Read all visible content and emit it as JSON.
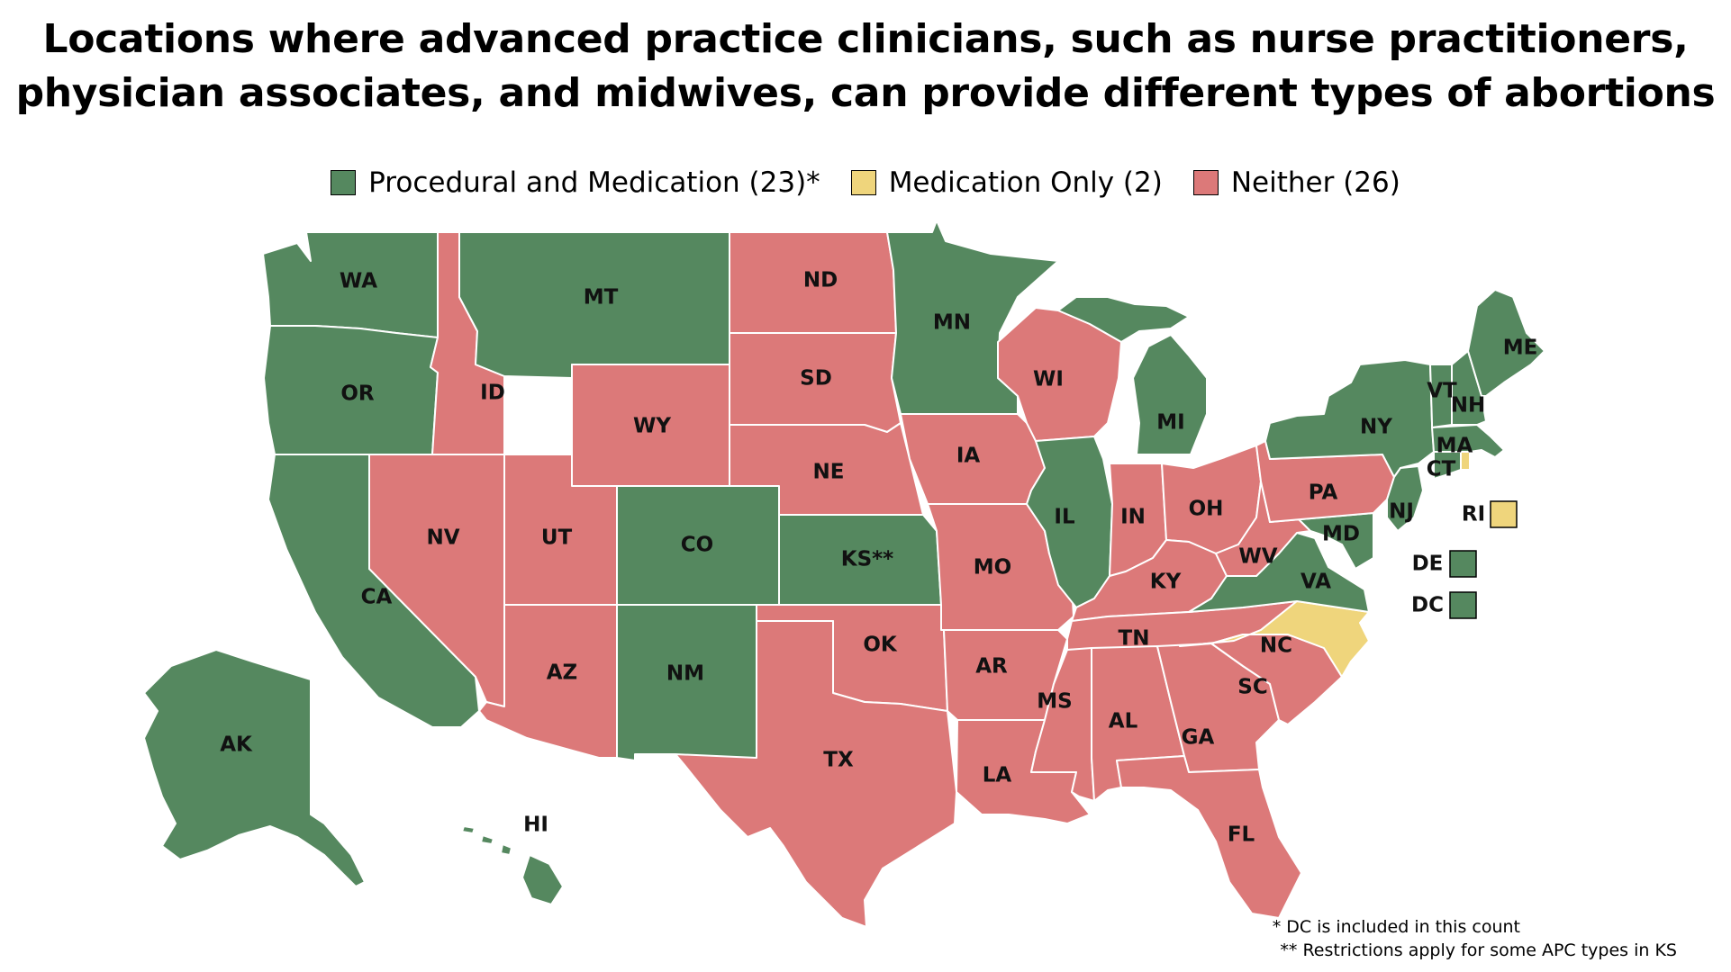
{
  "title_line1": "Locations where advanced practice clinicians, such as nurse practitioners,",
  "title_line2": "physician associates, and midwives, can provide different types of abortions",
  "legend": [
    {
      "key": "both",
      "label": "Procedural and Medication (23)*",
      "color": "#55885f"
    },
    {
      "key": "med",
      "label": "Medication Only (2)",
      "color": "#efd57c"
    },
    {
      "key": "neither",
      "label": "Neither (26)",
      "color": "#dc7979"
    }
  ],
  "states": [
    {
      "abbr": "WA",
      "status": "both"
    },
    {
      "abbr": "OR",
      "status": "both"
    },
    {
      "abbr": "CA",
      "status": "both"
    },
    {
      "abbr": "ID",
      "status": "neither"
    },
    {
      "abbr": "NV",
      "status": "neither"
    },
    {
      "abbr": "MT",
      "status": "both"
    },
    {
      "abbr": "WY",
      "status": "neither"
    },
    {
      "abbr": "UT",
      "status": "neither"
    },
    {
      "abbr": "AZ",
      "status": "neither"
    },
    {
      "abbr": "CO",
      "status": "both"
    },
    {
      "abbr": "NM",
      "status": "both"
    },
    {
      "abbr": "ND",
      "status": "neither"
    },
    {
      "abbr": "SD",
      "status": "neither"
    },
    {
      "abbr": "NE",
      "status": "neither"
    },
    {
      "abbr": "KS",
      "label": "KS**",
      "status": "both"
    },
    {
      "abbr": "OK",
      "status": "neither"
    },
    {
      "abbr": "TX",
      "status": "neither"
    },
    {
      "abbr": "MN",
      "status": "both"
    },
    {
      "abbr": "IA",
      "status": "neither"
    },
    {
      "abbr": "MO",
      "status": "neither"
    },
    {
      "abbr": "AR",
      "status": "neither"
    },
    {
      "abbr": "LA",
      "status": "neither"
    },
    {
      "abbr": "WI",
      "status": "neither"
    },
    {
      "abbr": "IL",
      "status": "both"
    },
    {
      "abbr": "MI",
      "status": "both"
    },
    {
      "abbr": "IN",
      "status": "neither"
    },
    {
      "abbr": "OH",
      "status": "neither"
    },
    {
      "abbr": "KY",
      "status": "neither"
    },
    {
      "abbr": "TN",
      "status": "neither"
    },
    {
      "abbr": "MS",
      "status": "neither"
    },
    {
      "abbr": "AL",
      "status": "neither"
    },
    {
      "abbr": "GA",
      "status": "neither"
    },
    {
      "abbr": "FL",
      "status": "neither"
    },
    {
      "abbr": "SC",
      "status": "neither"
    },
    {
      "abbr": "NC",
      "status": "med"
    },
    {
      "abbr": "VA",
      "status": "both"
    },
    {
      "abbr": "WV",
      "status": "neither"
    },
    {
      "abbr": "PA",
      "status": "neither"
    },
    {
      "abbr": "NY",
      "status": "both"
    },
    {
      "abbr": "NJ",
      "status": "both"
    },
    {
      "abbr": "MD",
      "status": "both"
    },
    {
      "abbr": "DE",
      "status": "both"
    },
    {
      "abbr": "DC",
      "status": "both"
    },
    {
      "abbr": "CT",
      "status": "both"
    },
    {
      "abbr": "RI",
      "status": "med"
    },
    {
      "abbr": "MA",
      "status": "both"
    },
    {
      "abbr": "VT",
      "status": "both"
    },
    {
      "abbr": "NH",
      "status": "both"
    },
    {
      "abbr": "ME",
      "status": "both"
    },
    {
      "abbr": "AK",
      "status": "both"
    },
    {
      "abbr": "HI",
      "status": "both"
    }
  ],
  "footnote1": "* DC is included in this count",
  "footnote2": "** Restrictions apply for some APC types in KS"
}
